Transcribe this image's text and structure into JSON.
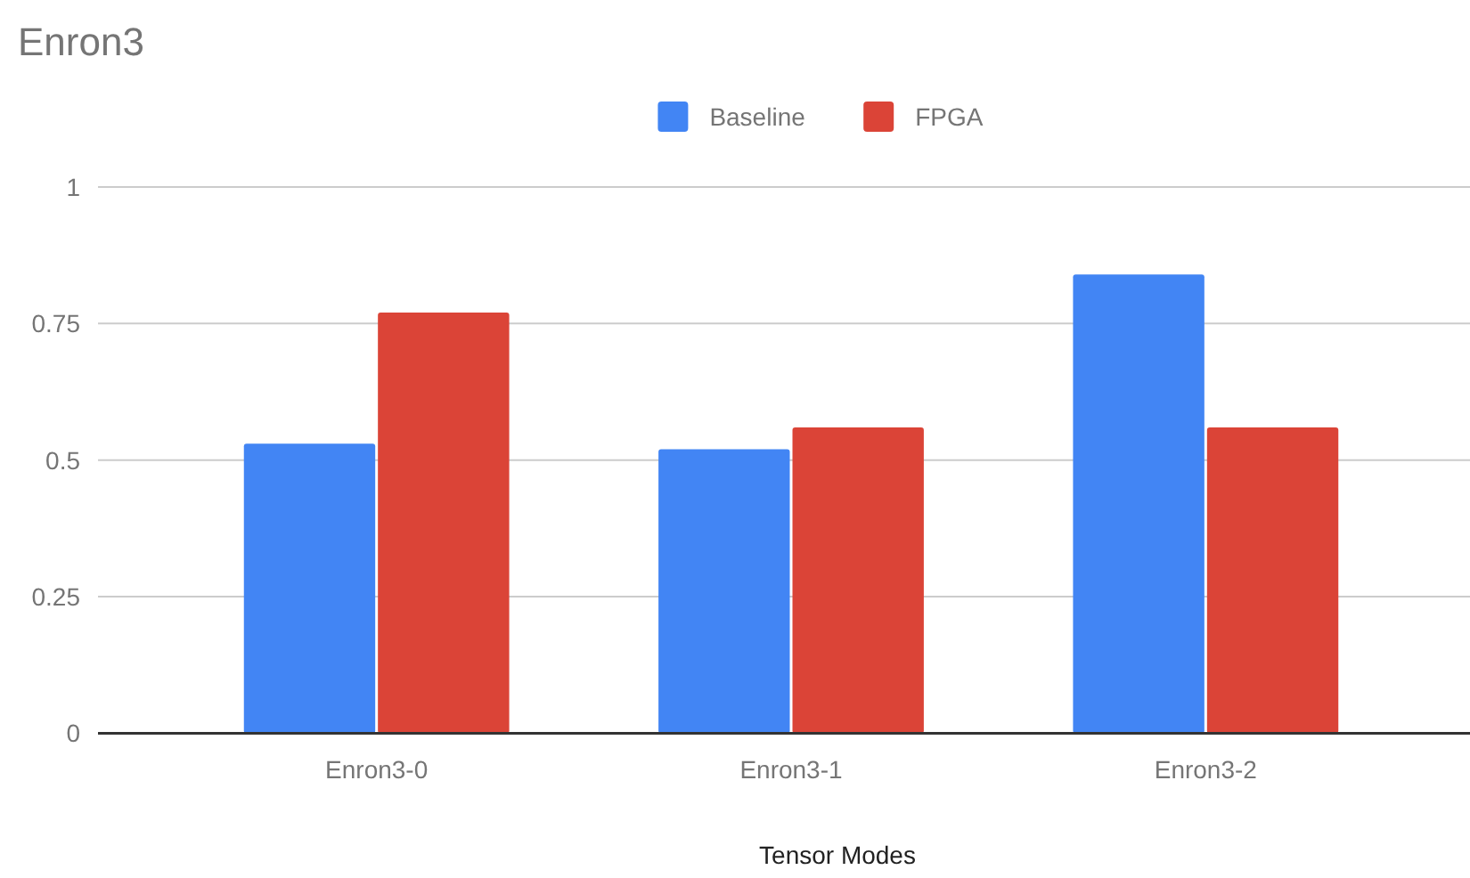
{
  "chart_data": {
    "type": "bar",
    "title": "Enron3",
    "xlabel": "Tensor Modes",
    "categories": [
      "Enron3-0",
      "Enron3-1",
      "Enron3-2"
    ],
    "series": [
      {
        "name": "Baseline",
        "color": "#4285f4",
        "values": [
          0.53,
          0.52,
          0.84
        ]
      },
      {
        "name": "FPGA",
        "color": "#db4437",
        "values": [
          0.77,
          0.56,
          0.56
        ]
      }
    ],
    "ylim": [
      0,
      1
    ],
    "yticks": [
      0,
      {
        "value": 0.25,
        "label": "0.25"
      },
      {
        "value": 0.5,
        "label": "0.5"
      },
      {
        "value": 0.75,
        "label": "0.75"
      },
      1
    ],
    "grid": "y",
    "legend": "top"
  }
}
